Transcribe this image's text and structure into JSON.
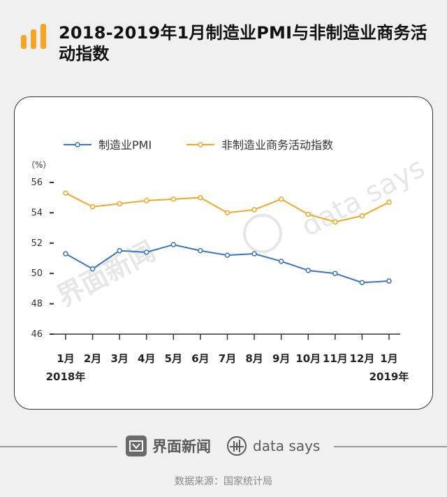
{
  "title": "2018-2019年1月制造业PMI与非制造业商务活动指数",
  "footer": {
    "brand_left": "界面新闻",
    "brand_right": "data says",
    "source": "数据来源：国家统计局"
  },
  "chart_data": {
    "type": "line",
    "title": "2018-2019年1月制造业PMI与非制造业商务活动指数",
    "ylabel": "（%）",
    "xlabel": "",
    "categories": [
      "1月",
      "2月",
      "3月",
      "4月",
      "5月",
      "6月",
      "7月",
      "8月",
      "9月",
      "10月",
      "11月",
      "12月",
      "1月"
    ],
    "x_year_labels": [
      "2018年",
      "",
      "",
      "",
      "",
      "",
      "",
      "",
      "",
      "",
      "",
      "",
      "2019年"
    ],
    "ylim": [
      46,
      56
    ],
    "yticks": [
      46,
      48,
      50,
      52,
      54,
      56
    ],
    "grid": false,
    "legend_position": "top-left",
    "series": [
      {
        "name": "制造业PMI",
        "color": "#3b73c4",
        "values": [
          51.3,
          50.3,
          51.5,
          51.4,
          51.9,
          51.5,
          51.2,
          51.3,
          50.8,
          50.2,
          50.0,
          49.4,
          49.5
        ]
      },
      {
        "name": "非制造业商务活动指数",
        "color": "#f5a623",
        "values": [
          55.3,
          54.4,
          54.6,
          54.8,
          54.9,
          55.0,
          54.0,
          54.2,
          54.9,
          53.9,
          53.4,
          53.8,
          54.7
        ]
      }
    ]
  },
  "watermark": {
    "left": "界面新闻",
    "right": "data says"
  }
}
